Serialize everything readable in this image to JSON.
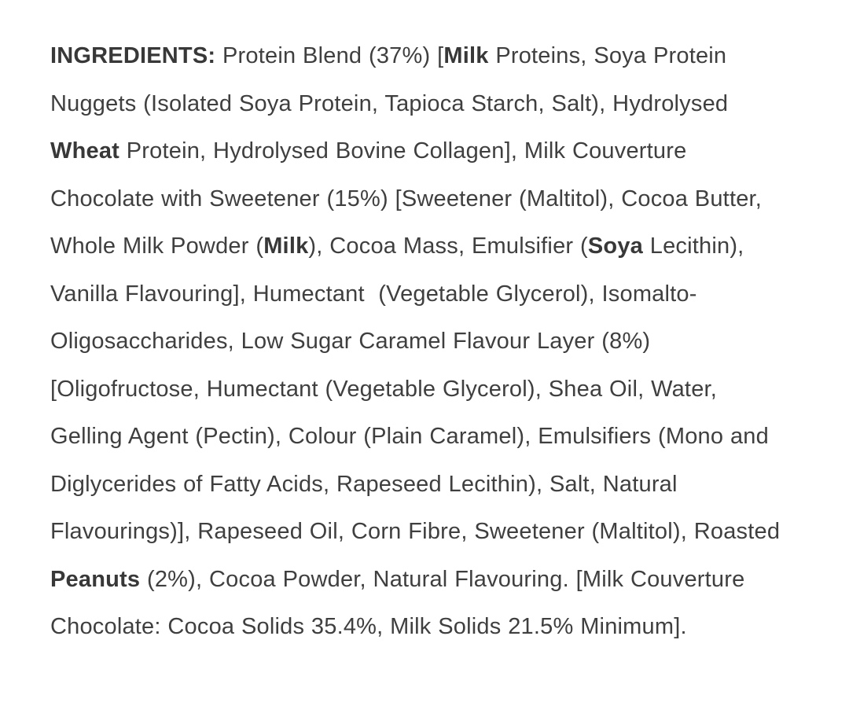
{
  "page": {
    "background_color": "#ffffff",
    "text_color": "#3f3f3f",
    "bold_text_color": "#383838"
  },
  "ingredients": {
    "heading_label": "INGREDIENTS:",
    "segments": [
      {
        "text": "INGREDIENTS:",
        "bold": true
      },
      {
        "text": " Protein Blend (37%) [",
        "bold": false
      },
      {
        "text": "Milk",
        "bold": true
      },
      {
        "text": " Proteins, Soya Protein Nuggets (Isolated Soya Protein, Tapioca Starch, Salt), Hydrolysed ",
        "bold": false
      },
      {
        "text": "Wheat",
        "bold": true
      },
      {
        "text": " Protein, Hydrolysed Bovine Collagen], Milk Couverture Chocolate with Sweetener (15%) [Sweetener (Maltitol), Cocoa Butter, Whole Milk Powder (",
        "bold": false
      },
      {
        "text": "Milk",
        "bold": true
      },
      {
        "text": "), Cocoa Mass, Emulsifier (",
        "bold": false
      },
      {
        "text": "Soya",
        "bold": true
      },
      {
        "text": " Lecithin), Vanilla Flavouring], Humectant  (Vegetable Glycerol), Isomalto-Oligosaccharides, Low Sugar Caramel Flavour Layer (8%) [Oligofructose, Humectant (Vegetable Glycerol), Shea Oil, Water, Gelling Agent (Pectin), Colour (Plain Caramel), Emulsifiers (Mono and Diglycerides of Fatty Acids, Rapeseed Lecithin), Salt, Natural Flavourings)], Rapeseed Oil, Corn Fibre, Sweetener (Maltitol), Roasted ",
        "bold": false
      },
      {
        "text": "Peanuts",
        "bold": true
      },
      {
        "text": " (2%), Cocoa Powder, Natural Flavouring. [Milk Couverture Chocolate: Cocoa Solids 35.4%, Milk Solids 21.5% Minimum].",
        "bold": false
      }
    ],
    "bold_allergens": [
      "Milk",
      "Wheat",
      "Milk",
      "Soya",
      "Peanuts"
    ],
    "visible_percentages": {
      "protein_blend": "37%",
      "milk_couverture_chocolate_with_sweetener": "15%",
      "low_sugar_caramel_flavour_layer": "8%",
      "roasted_peanuts": "2%",
      "cocoa_solids": "35.4%",
      "milk_solids_minimum": "21.5%"
    }
  }
}
